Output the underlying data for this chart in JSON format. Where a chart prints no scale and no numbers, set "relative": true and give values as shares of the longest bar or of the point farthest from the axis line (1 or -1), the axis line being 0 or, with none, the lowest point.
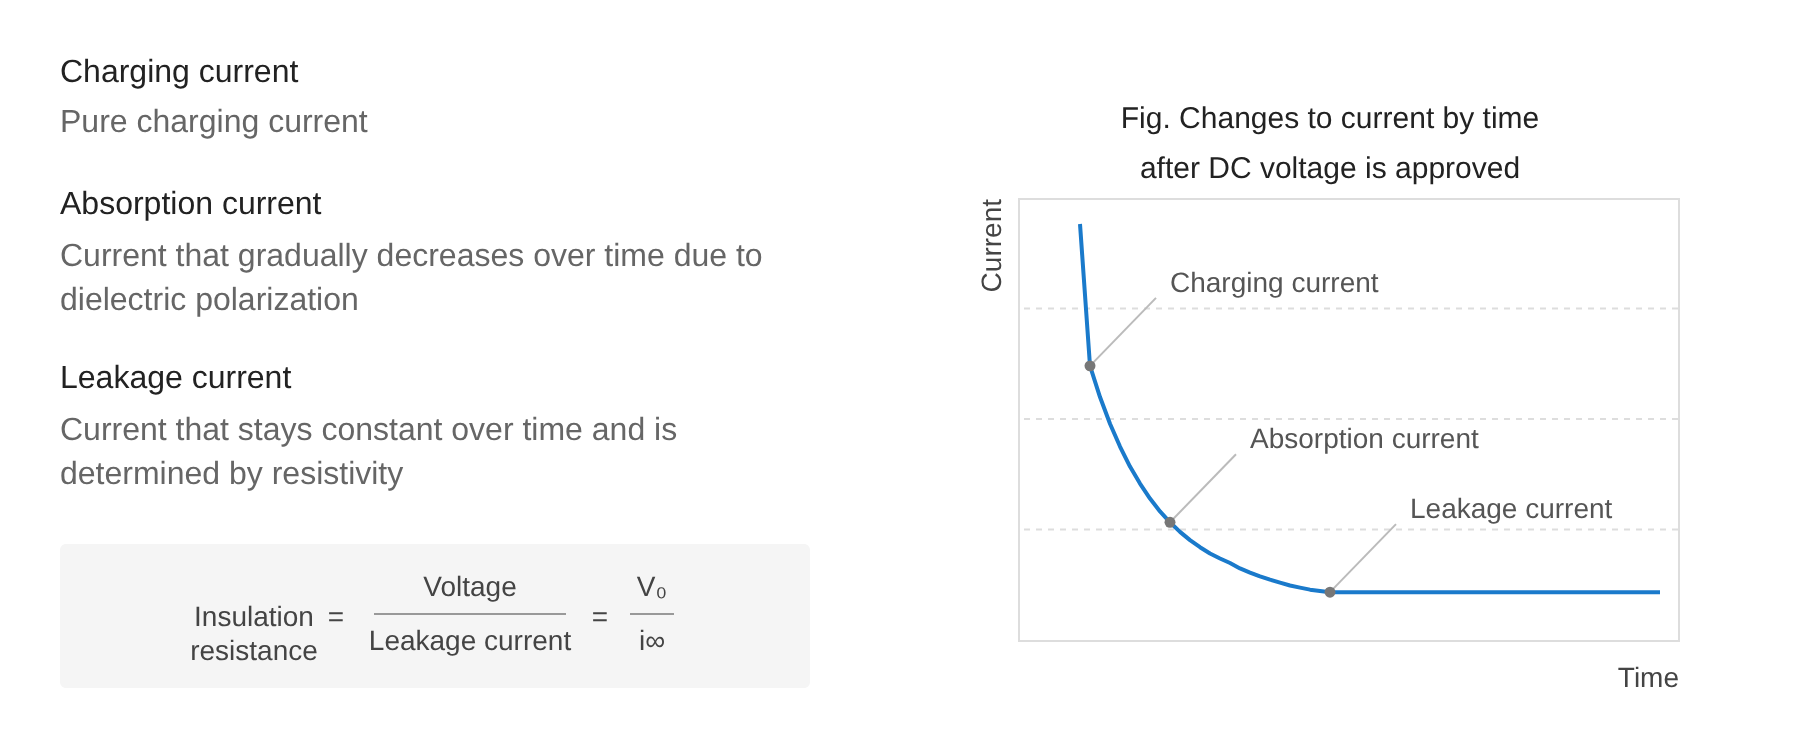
{
  "chart_data": [
    {
      "type": "other",
      "annotations": [
        "Charging current",
        "Pure charging current",
        "Absorption current",
        "Current that gradually decreases over time due to dielectric polarization",
        "Leakage current",
        "Current that stays constant over time and is determined by resistivity",
        "Insulation resistance",
        "=",
        "Voltage",
        "Leakage current",
        "=",
        "V₀",
        "i∞"
      ]
    },
    {
      "type": "line",
      "title": "Fig. Changes to current by time after DC voltage is approved",
      "xlabel": "Time",
      "ylabel": "Current",
      "relative": true,
      "grid": "y",
      "marker": "none",
      "line_style": "solid",
      "categories": [
        null,
        null,
        null,
        null,
        null,
        null,
        null,
        null,
        null,
        null,
        null,
        null,
        null,
        null,
        null,
        null,
        null,
        null,
        null,
        null,
        null,
        null,
        null,
        null,
        null,
        null,
        null,
        null,
        null,
        null,
        null,
        null,
        null,
        null,
        null,
        null,
        null,
        null,
        null,
        null,
        null,
        null,
        null,
        null,
        null,
        null,
        null,
        null,
        null,
        null,
        null,
        null,
        null,
        null,
        null,
        null,
        null,
        null,
        null
      ],
      "series": [
        {
          "color": "#1a7acb",
          "values": [
            1.0,
            0.659,
            0.584,
            0.52,
            0.465,
            0.417,
            0.376,
            0.34,
            0.309,
            0.283,
            0.26,
            0.24,
            0.223,
            0.208,
            0.196,
            0.185,
            0.172,
            0.162,
            0.153,
            0.145,
            0.138,
            0.131,
            0.126,
            0.121,
            0.118,
            0.115,
            0.115,
            0.115,
            0.115,
            0.115,
            0.115,
            0.115,
            0.115,
            0.115,
            0.115,
            0.115,
            0.115,
            0.115,
            0.115,
            0.115,
            0.115,
            0.115,
            0.115,
            0.115,
            0.115,
            0.115,
            0.115,
            0.115,
            0.115,
            0.115,
            0.115,
            0.115,
            0.115,
            0.115,
            0.115,
            0.115,
            0.115,
            0.115,
            0.115
          ]
        }
      ],
      "annotations": [
        "Charging current",
        "Absorption current",
        "Leakage current"
      ]
    }
  ]
}
